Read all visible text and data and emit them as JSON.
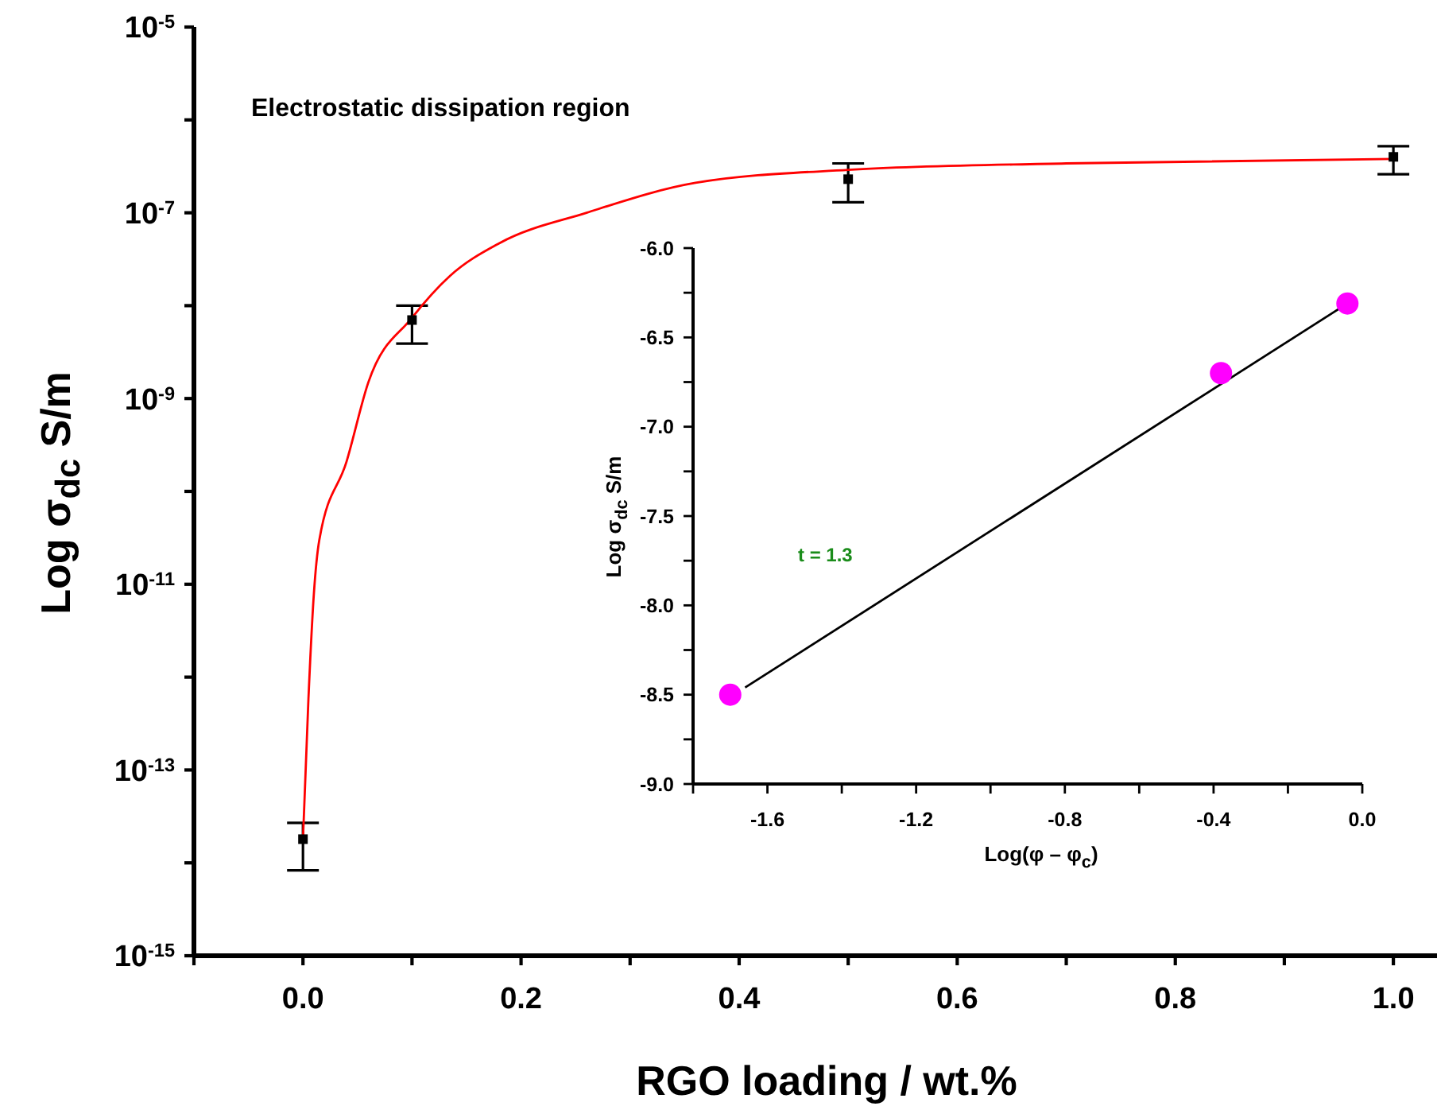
{
  "chart_data": [
    {
      "type": "scatter",
      "xlabel": "RGO loading / wt.%",
      "ylabel": "Log σ$_{dc}$ S/m",
      "log": "y",
      "xlim": [
        -0.1,
        1.04
      ],
      "xticks": [
        {
          "value": -0.1,
          "label": null
        },
        {
          "value": 0,
          "label": "0.0"
        },
        {
          "value": 0.1,
          "label": null
        },
        0.2,
        {
          "value": 0.3,
          "label": null
        },
        0.4,
        {
          "value": 0.5,
          "label": null
        },
        0.6,
        {
          "value": 0.7,
          "label": null
        },
        0.8,
        {
          "value": 0.9,
          "label": null
        },
        {
          "value": 1,
          "label": "1.0"
        }
      ],
      "ylim": [
        1e-15,
        1e-05
      ],
      "yticks": [
        {
          "value": 1e-15,
          "label": "10$^{-15}$"
        },
        {
          "value": 1e-14,
          "label": null
        },
        {
          "value": 1e-13,
          "label": "10$^{-13}$"
        },
        {
          "value": 1e-12,
          "label": null
        },
        {
          "value": 1e-11,
          "label": "10$^{-11}$"
        },
        {
          "value": 1e-10,
          "label": null
        },
        {
          "value": 1e-09,
          "label": "10$^{-9}$"
        },
        {
          "value": 1e-08,
          "label": null
        },
        {
          "value": 1e-07,
          "label": "10$^{-7}$"
        },
        {
          "value": 1e-06,
          "label": null
        },
        {
          "value": 1e-05,
          "label": "10$^{-5}$"
        }
      ],
      "annotations": [
        "Electrostatic dissipation region"
      ],
      "series": [
        {
          "marker": "square",
          "color": "#000000",
          "x": [
            0,
            0.1,
            0.5,
            1.0
          ],
          "values": [
            1.8e-14,
            7e-09,
            2.3e-07,
            4e-07
          ],
          "errors": [
            [
              8.3e-15,
              2.7e-14
            ],
            [
              3.9e-09,
              1e-08
            ],
            [
              1.3e-07,
              3.4e-07
            ],
            [
              2.6e-07,
              5.2e-07
            ]
          ]
        },
        {
          "type": "line",
          "marker": "none",
          "color": "#ff0000",
          "x": [
            0,
            0.005,
            0.01,
            0.015,
            0.04,
            0.06,
            0.1,
            0.135,
            0.18,
            0.26,
            0.36,
            0.5,
            0.7,
            1.0
          ],
          "values": [
            1.8e-14,
            5.8e-13,
            7.9e-12,
            3e-11,
            2.1e-10,
            1.5e-09,
            7.4e-09,
            2.1e-08,
            4.7e-08,
            1e-07,
            2.1e-07,
            2.9e-07,
            3.4e-07,
            3.8e-07
          ]
        }
      ]
    },
    {
      "type": "scatter",
      "xlabel": "Log(φ – φ$_{c}$)",
      "ylabel": "Log σ$_{dc}$ S/m",
      "xlim": [
        -1.8,
        0
      ],
      "xticks": [
        {
          "value": -1.8,
          "label": null
        },
        -1.6,
        {
          "value": -1.4,
          "label": null
        },
        -1.2,
        {
          "value": -1.0,
          "label": null
        },
        -0.8,
        {
          "value": -0.6,
          "label": null
        },
        -0.4,
        {
          "value": -0.2,
          "label": null
        },
        {
          "value": 0,
          "label": "0.0"
        }
      ],
      "ylim": [
        -9,
        -6
      ],
      "yticks": [
        {
          "value": -9,
          "label": "-9.0"
        },
        {
          "value": -8.75,
          "label": null
        },
        -8.5,
        {
          "value": -8.25,
          "label": null
        },
        {
          "value": -8,
          "label": "-8.0"
        },
        {
          "value": -7.75,
          "label": null
        },
        -7.5,
        {
          "value": -7.25,
          "label": null
        },
        {
          "value": -7,
          "label": "-7.0"
        },
        {
          "value": -6.75,
          "label": null
        },
        -6.5,
        {
          "value": -6.25,
          "label": null
        },
        {
          "value": -6,
          "label": "-6.0"
        }
      ],
      "annotations": [
        "t = 1.3"
      ],
      "series": [
        {
          "type": "line",
          "marker": "none",
          "color": "#000000",
          "x": [
            -1.66,
            -0.04
          ],
          "values": [
            -8.46,
            -6.31
          ]
        },
        {
          "marker": "circle",
          "color": "#ff00ff",
          "x": [
            -1.7,
            -0.38,
            -0.04
          ],
          "values": [
            -8.5,
            -6.7,
            -6.31
          ]
        }
      ]
    }
  ]
}
